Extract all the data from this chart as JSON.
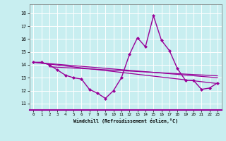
{
  "xlabel": "Windchill (Refroidissement éolien,°C)",
  "bg_color": "#c8eef0",
  "grid_color": "#ffffff",
  "line_color": "#990099",
  "xlim": [
    -0.5,
    23.5
  ],
  "ylim": [
    10.5,
    18.7
  ],
  "yticks": [
    11,
    12,
    13,
    14,
    15,
    16,
    17,
    18
  ],
  "xticks": [
    0,
    1,
    2,
    3,
    4,
    5,
    6,
    7,
    8,
    9,
    10,
    11,
    12,
    13,
    14,
    15,
    16,
    17,
    18,
    19,
    20,
    21,
    22,
    23
  ],
  "hours": [
    0,
    1,
    2,
    3,
    4,
    5,
    6,
    7,
    8,
    9,
    10,
    11,
    12,
    13,
    14,
    15,
    16,
    17,
    18,
    19,
    20,
    21,
    22,
    23
  ],
  "temp_main": [
    14.2,
    14.2,
    14.0,
    13.6,
    13.2,
    13.0,
    12.9,
    12.1,
    11.8,
    11.4,
    12.0,
    13.0,
    14.8,
    16.1,
    15.4,
    17.8,
    15.9,
    15.1,
    13.7,
    12.8,
    12.8,
    12.1,
    12.2,
    12.6
  ],
  "trend_lines": [
    {
      "x": [
        0,
        23
      ],
      "y": [
        14.2,
        13.0
      ]
    },
    {
      "x": [
        0,
        23
      ],
      "y": [
        14.2,
        12.55
      ]
    },
    {
      "x": [
        2,
        23
      ],
      "y": [
        13.85,
        13.15
      ]
    }
  ]
}
